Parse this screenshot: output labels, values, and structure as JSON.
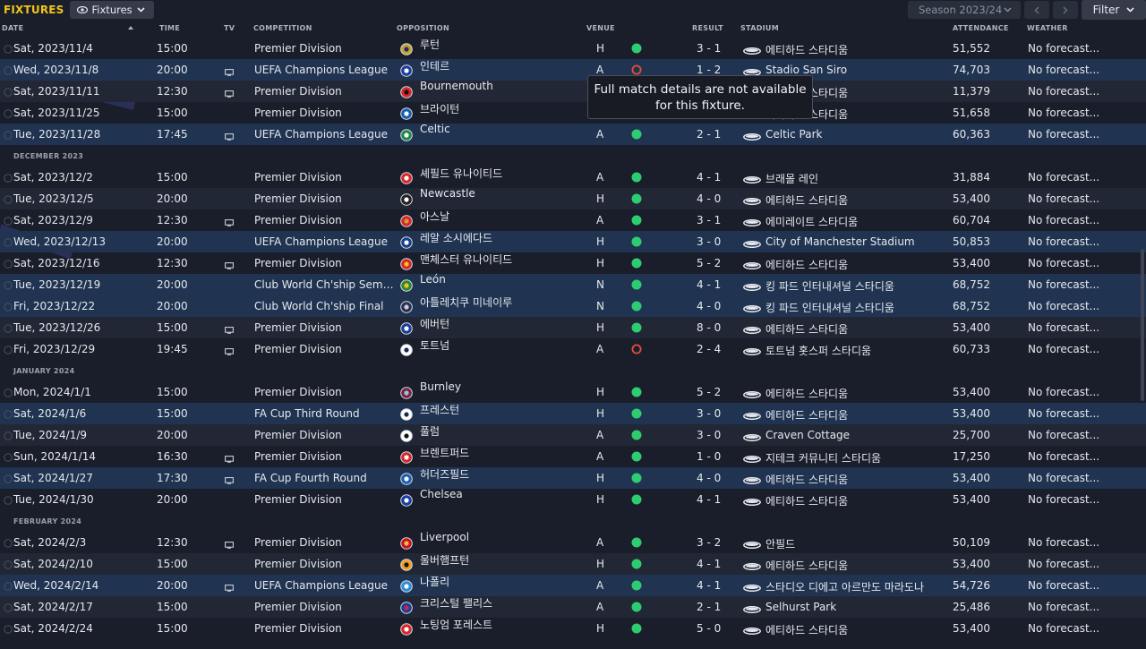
{
  "header": {
    "brand": "FIXTURES",
    "view_dropdown": "Fixtures",
    "season": "Season 2023/24",
    "filter_label": "Filter"
  },
  "columns": {
    "date": "DATE",
    "time": "TIME",
    "tv": "TV",
    "competition": "COMPETITION",
    "opposition": "OPPOSITION",
    "venue": "VENUE",
    "result": "RESULT",
    "stadium": "STADIUM",
    "attendance": "ATTENDANCE",
    "weather": "WEATHER"
  },
  "tooltip": {
    "line1": "Full match details are not available",
    "line2": "for this fixture."
  },
  "colors": {
    "accent": "#f0c419",
    "win": "#2ecc71",
    "loss": "#e74c3c",
    "highlight_row": "#203452"
  },
  "rows": [
    {
      "type": "fixture",
      "style": "plain",
      "date": "Sat, 2023/11/4",
      "time": "15:00",
      "tv": false,
      "competition": "Premier Division",
      "badge": "#c8a032",
      "badge2": "#1a2f6b",
      "opposition": "루턴",
      "venue": "H",
      "outcome": "win",
      "result": "3 - 1",
      "stadium": "에티하드 스타디움",
      "attendance": "51,552",
      "weather": "No forecast..."
    },
    {
      "type": "fixture",
      "style": "hl",
      "date": "Wed, 2023/11/8",
      "time": "20:00",
      "tv": true,
      "competition": "UEFA Champions League",
      "badge": "#1c3fa0",
      "badge2": "#ffffff",
      "opposition": "인테르",
      "venue": "A",
      "outcome": "loss",
      "result": "1 - 2",
      "stadium": "Stadio San Siro",
      "attendance": "74,703",
      "weather": "No forecast..."
    },
    {
      "type": "fixture",
      "style": "stripe",
      "date": "Sat, 2023/11/11",
      "time": "12:30",
      "tv": true,
      "competition": "Premier Division",
      "badge": "#d8262b",
      "badge2": "#111111",
      "opposition": "Bournemouth",
      "venue": "",
      "outcome": "",
      "result": "",
      "stadium": "에티하드 스타디움",
      "attendance": "11,379",
      "weather": "No forecast..."
    },
    {
      "type": "fixture",
      "style": "plain",
      "date": "Sat, 2023/11/25",
      "time": "15:00",
      "tv": false,
      "competition": "Premier Division",
      "badge": "#1b5fb3",
      "badge2": "#ffffff",
      "opposition": "브라이턴",
      "venue": "H",
      "outcome": "win",
      "result": "",
      "stadium": "에티하드 스타디움",
      "attendance": "51,658",
      "weather": "No forecast..."
    },
    {
      "type": "fixture",
      "style": "hl",
      "date": "Tue, 2023/11/28",
      "time": "17:45",
      "tv": true,
      "competition": "UEFA Champions League",
      "badge": "#1f8a4a",
      "badge2": "#ffffff",
      "opposition": "Celtic",
      "venue": "A",
      "outcome": "win",
      "result": "2 - 1",
      "stadium": "Celtic Park",
      "attendance": "60,363",
      "weather": "No forecast..."
    },
    {
      "type": "month",
      "label": "DECEMBER 2023"
    },
    {
      "type": "fixture",
      "style": "plain",
      "date": "Sat, 2023/12/2",
      "time": "15:00",
      "tv": false,
      "competition": "Premier Division",
      "badge": "#d8262b",
      "badge2": "#ffffff",
      "opposition": "셰필드 유나이티드",
      "venue": "A",
      "outcome": "win",
      "result": "4 - 1",
      "stadium": "브래몰 레인",
      "attendance": "31,884",
      "weather": "No forecast..."
    },
    {
      "type": "fixture",
      "style": "stripe",
      "date": "Tue, 2023/12/5",
      "time": "20:00",
      "tv": false,
      "competition": "Premier Division",
      "badge": "#222222",
      "badge2": "#ffffff",
      "opposition": "Newcastle",
      "venue": "H",
      "outcome": "win",
      "result": "4 - 0",
      "stadium": "에티하드 스타디움",
      "attendance": "53,400",
      "weather": "No forecast..."
    },
    {
      "type": "fixture",
      "style": "plain",
      "date": "Sat, 2023/12/9",
      "time": "12:30",
      "tv": true,
      "competition": "Premier Division",
      "badge": "#d8262b",
      "badge2": "#c8a032",
      "opposition": "아스날",
      "venue": "A",
      "outcome": "win",
      "result": "3 - 1",
      "stadium": "에미레이트 스타디움",
      "attendance": "60,704",
      "weather": "No forecast..."
    },
    {
      "type": "fixture",
      "style": "hl",
      "date": "Wed, 2023/12/13",
      "time": "20:00",
      "tv": false,
      "competition": "UEFA Champions League",
      "badge": "#1a3f8f",
      "badge2": "#ffffff",
      "opposition": "레알 소시에다드",
      "venue": "H",
      "outcome": "win",
      "result": "3 - 0",
      "stadium": "City of Manchester Stadium",
      "attendance": "50,853",
      "weather": "No forecast..."
    },
    {
      "type": "fixture",
      "style": "plain",
      "date": "Sat, 2023/12/16",
      "time": "12:30",
      "tv": true,
      "competition": "Premier Division",
      "badge": "#d8262b",
      "badge2": "#f0c419",
      "opposition": "맨체스터 유나이티드",
      "venue": "H",
      "outcome": "win",
      "result": "5 - 2",
      "stadium": "에티하드 스타디움",
      "attendance": "53,400",
      "weather": "No forecast..."
    },
    {
      "type": "fixture",
      "style": "hl",
      "date": "Tue, 2023/12/19",
      "time": "20:00",
      "tv": false,
      "competition": "Club World Ch'ship Semi-Final",
      "badge": "#2a8a3a",
      "badge2": "#f0c419",
      "opposition": "León",
      "venue": "N",
      "outcome": "win",
      "result": "4 - 1",
      "stadium": "킹 파드 인터내셔널 스타디움",
      "attendance": "68,752",
      "weather": "No forecast..."
    },
    {
      "type": "fixture",
      "style": "hl",
      "date": "Fri, 2023/12/22",
      "time": "20:00",
      "tv": false,
      "competition": "Club World Ch'ship Final",
      "badge": "#2a2f55",
      "badge2": "#d0d0d0",
      "opposition": "아틀레치쿠 미네이루",
      "venue": "N",
      "outcome": "win",
      "result": "4 - 0",
      "stadium": "킹 파드 인터내셔널 스타디움",
      "attendance": "68,752",
      "weather": "No forecast..."
    },
    {
      "type": "fixture",
      "style": "stripe",
      "date": "Tue, 2023/12/26",
      "time": "15:00",
      "tv": true,
      "competition": "Premier Division",
      "badge": "#1a3f9a",
      "badge2": "#ffffff",
      "opposition": "에버턴",
      "venue": "H",
      "outcome": "win",
      "result": "8 - 0",
      "stadium": "에티하드 스타디움",
      "attendance": "53,400",
      "weather": "No forecast..."
    },
    {
      "type": "fixture",
      "style": "plain",
      "date": "Fri, 2023/12/29",
      "time": "19:45",
      "tv": true,
      "competition": "Premier Division",
      "badge": "#ffffff",
      "badge2": "#1a2a55",
      "opposition": "토트넘",
      "venue": "A",
      "outcome": "loss",
      "result": "2 - 4",
      "stadium": "토트넘 홋스퍼 스타디움",
      "attendance": "60,733",
      "weather": "No forecast..."
    },
    {
      "type": "month",
      "label": "JANUARY 2024"
    },
    {
      "type": "fixture",
      "style": "plain",
      "date": "Mon, 2024/1/1",
      "time": "15:00",
      "tv": false,
      "competition": "Premier Division",
      "badge": "#7a2340",
      "badge2": "#8fc3e8",
      "opposition": "Burnley",
      "venue": "H",
      "outcome": "win",
      "result": "5 - 2",
      "stadium": "에티하드 스타디움",
      "attendance": "53,400",
      "weather": "No forecast..."
    },
    {
      "type": "fixture",
      "style": "hl",
      "date": "Sat, 2024/1/6",
      "time": "15:00",
      "tv": false,
      "competition": "FA Cup Third Round",
      "badge": "#ffffff",
      "badge2": "#1a2a55",
      "opposition": "프레스턴",
      "venue": "H",
      "outcome": "win",
      "result": "3 - 0",
      "stadium": "에티하드 스타디움",
      "attendance": "53,400",
      "weather": "No forecast..."
    },
    {
      "type": "fixture",
      "style": "stripe",
      "date": "Tue, 2024/1/9",
      "time": "20:00",
      "tv": false,
      "competition": "Premier Division",
      "badge": "#ffffff",
      "badge2": "#111111",
      "opposition": "풀럼",
      "venue": "A",
      "outcome": "win",
      "result": "3 - 0",
      "stadium": "Craven Cottage",
      "attendance": "25,700",
      "weather": "No forecast..."
    },
    {
      "type": "fixture",
      "style": "plain",
      "date": "Sun, 2024/1/14",
      "time": "16:30",
      "tv": true,
      "competition": "Premier Division",
      "badge": "#d8262b",
      "badge2": "#ffffff",
      "opposition": "브렌트퍼드",
      "venue": "A",
      "outcome": "win",
      "result": "1 - 0",
      "stadium": "지테크 커뮤니티 스타디움",
      "attendance": "17,250",
      "weather": "No forecast..."
    },
    {
      "type": "fixture",
      "style": "hl",
      "date": "Sat, 2024/1/27",
      "time": "17:30",
      "tv": true,
      "competition": "FA Cup Fourth Round",
      "badge": "#1a5fb3",
      "badge2": "#ffffff",
      "opposition": "허더즈필드",
      "venue": "H",
      "outcome": "win",
      "result": "4 - 0",
      "stadium": "에티하드 스타디움",
      "attendance": "53,400",
      "weather": "No forecast..."
    },
    {
      "type": "fixture",
      "style": "plain",
      "date": "Tue, 2024/1/30",
      "time": "20:00",
      "tv": false,
      "competition": "Premier Division",
      "badge": "#1a3fa0",
      "badge2": "#ffffff",
      "opposition": "Chelsea",
      "venue": "H",
      "outcome": "win",
      "result": "4 - 1",
      "stadium": "에티하드 스타디움",
      "attendance": "53,400",
      "weather": "No forecast..."
    },
    {
      "type": "month",
      "label": "FEBRUARY 2024"
    },
    {
      "type": "fixture",
      "style": "plain",
      "date": "Sat, 2024/2/3",
      "time": "12:30",
      "tv": true,
      "competition": "Premier Division",
      "badge": "#c8102e",
      "badge2": "#f0c419",
      "opposition": "Liverpool",
      "venue": "A",
      "outcome": "win",
      "result": "3 - 2",
      "stadium": "안필드",
      "attendance": "50,109",
      "weather": "No forecast..."
    },
    {
      "type": "fixture",
      "style": "stripe",
      "date": "Sat, 2024/2/10",
      "time": "15:00",
      "tv": false,
      "competition": "Premier Division",
      "badge": "#f0a020",
      "badge2": "#111111",
      "opposition": "울버햄프턴",
      "venue": "H",
      "outcome": "win",
      "result": "4 - 1",
      "stadium": "에티하드 스타디움",
      "attendance": "53,400",
      "weather": "No forecast..."
    },
    {
      "type": "fixture",
      "style": "hl",
      "date": "Wed, 2024/2/14",
      "time": "20:00",
      "tv": true,
      "competition": "UEFA Champions League",
      "badge": "#2a8fd8",
      "badge2": "#ffffff",
      "opposition": "나폴리",
      "venue": "A",
      "outcome": "win",
      "result": "4 - 1",
      "stadium": "스타디오 디에고 아르만도 마라도나",
      "attendance": "54,726",
      "weather": "No forecast..."
    },
    {
      "type": "fixture",
      "style": "stripe",
      "date": "Sat, 2024/2/17",
      "time": "15:00",
      "tv": false,
      "competition": "Premier Division",
      "badge": "#1a3fa0",
      "badge2": "#d8262b",
      "opposition": "크리스털 팰리스",
      "venue": "A",
      "outcome": "win",
      "result": "2 - 1",
      "stadium": "Selhurst Park",
      "attendance": "25,486",
      "weather": "No forecast..."
    },
    {
      "type": "fixture",
      "style": "plain",
      "date": "Sat, 2024/2/24",
      "time": "15:00",
      "tv": false,
      "competition": "Premier Division",
      "badge": "#d8262b",
      "badge2": "#ffffff",
      "opposition": "노팅엄 포레스트",
      "venue": "H",
      "outcome": "win",
      "result": "5 - 0",
      "stadium": "에티하드 스타디움",
      "attendance": "53,400",
      "weather": "No forecast..."
    }
  ]
}
